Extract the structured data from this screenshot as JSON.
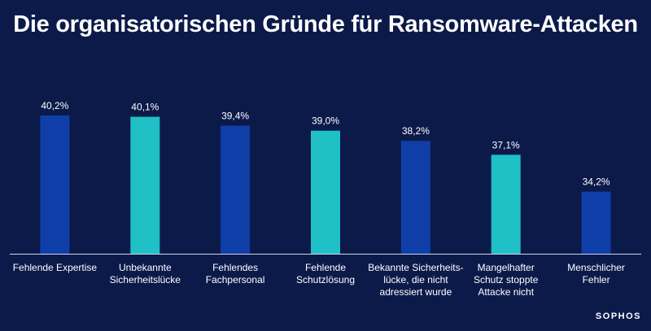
{
  "chart_data": {
    "type": "bar",
    "title": "Die organisatorischen Gründe für Ransomware-Attacken",
    "categories": [
      [
        "Fehlende Expertise"
      ],
      [
        "Unbekannte",
        "Sicherheitslücke"
      ],
      [
        "Fehlendes",
        "Fachpersonal"
      ],
      [
        "Fehlende",
        "Schutzlösung"
      ],
      [
        "Bekannte Sicherheits-",
        "lücke, die nicht",
        "adressiert wurde"
      ],
      [
        "Mangelhafter",
        "Schutz stoppte",
        "Attacke nicht"
      ],
      [
        "Menschlicher",
        "Fehler"
      ]
    ],
    "values": [
      40.2,
      40.1,
      39.4,
      39.0,
      38.2,
      37.1,
      34.2
    ],
    "value_labels": [
      "40,2%",
      "40,1%",
      "39,4%",
      "39,0%",
      "38,2%",
      "37,1%",
      "34,2%"
    ],
    "bar_colors": [
      "#0f3ea8",
      "#1fc0c6",
      "#0f3ea8",
      "#1fc0c6",
      "#0f3ea8",
      "#1fc0c6",
      "#0f3ea8"
    ],
    "xlabel": "",
    "ylabel": "",
    "ylim": [
      29.3,
      40.2
    ]
  },
  "colors": {
    "background": "#0c1a4a",
    "axis": "#d0d6e6",
    "text": "#ffffff"
  },
  "brand": {
    "logo_text": "SOPHOS"
  }
}
